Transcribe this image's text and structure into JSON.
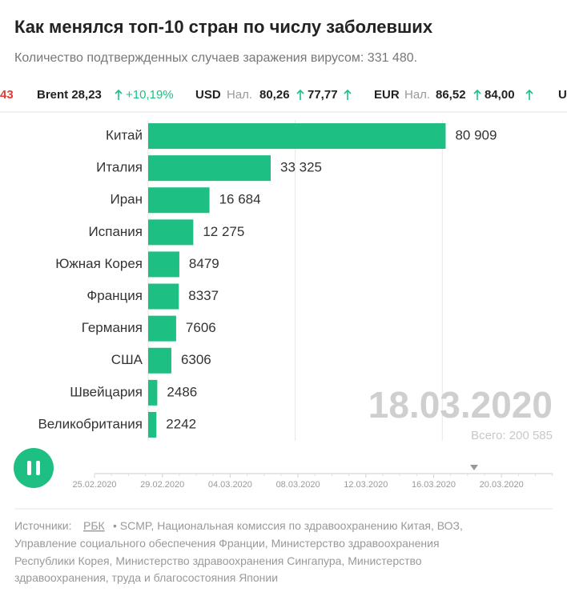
{
  "chart_data": {
    "type": "bar",
    "orientation": "horizontal",
    "title": "Как менялся топ-10 стран по числу заболевших",
    "subtitle": "Количество подтвержденных случаев заражения вирусом: 331 480.",
    "ticker": {
      "items": [
        {
          "name": "43"
        },
        {
          "name": "Brent 28,23",
          "change": "+10,19%"
        },
        {
          "name": "USD",
          "kind": "Нал.",
          "cash": "80,26",
          "card": "77,77"
        },
        {
          "name": "EUR",
          "kind": "Нал.",
          "cash": "86,52",
          "card": "84,00"
        },
        {
          "name": "U"
        }
      ]
    },
    "categories": [
      "Китай",
      "Италия",
      "Иран",
      "Испания",
      "Южная Корея",
      "Франция",
      "Германия",
      "США",
      "Швейцария",
      "Великобритания"
    ],
    "values": [
      80909,
      33325,
      16684,
      12275,
      8479,
      8337,
      7606,
      6306,
      2486,
      2242
    ],
    "value_labels": [
      "80 909",
      "33 325",
      "16 684",
      "12 275",
      "8479",
      "8337",
      "7606",
      "6306",
      "2486",
      "2242"
    ],
    "color": "#1dbf82",
    "xlim": [
      0,
      110000
    ],
    "xticks": [
      0,
      40000,
      80000
    ],
    "grid": true,
    "date": "18.03.2020",
    "total": "Всего: 200 585",
    "timeline": [
      "25.02.2020",
      "29.02.2020",
      "04.03.2020",
      "08.03.2020",
      "12.03.2020",
      "16.03.2020",
      "20.03.2020"
    ],
    "sources": {
      "label": "Источники:",
      "link": "РБК",
      "lines": [
        "• SCMP, Национальная комиссия по здравоохранению Китая, ВОЗ,",
        "Управление социального обеспечения Франции, Министерство здравоохранения",
        "Республики Корея, Министерство здравоохранения Сингапура, Министерство",
        "здравоохранения, труда и благосостояния Японии"
      ]
    }
  }
}
